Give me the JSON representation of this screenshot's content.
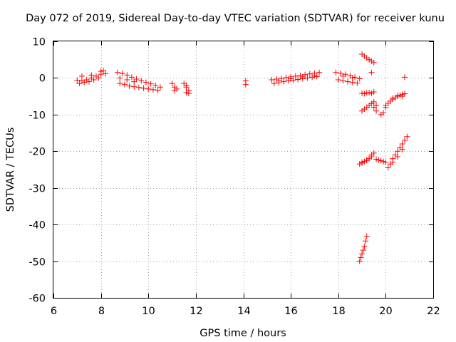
{
  "chart_data": {
    "type": "scatter",
    "title": "Day 072 of 2019, Sidereal Day-to-day VTEC variation (SDTVAR) for receiver kunu",
    "xlabel": "GPS time / hours",
    "ylabel": "SDTVAR / TECUs",
    "xlim": [
      6,
      22
    ],
    "ylim": [
      -60,
      10
    ],
    "xticks": [
      6,
      8,
      10,
      12,
      14,
      16,
      18,
      20,
      22
    ],
    "yticks": [
      10,
      0,
      -10,
      -20,
      -30,
      -40,
      -50,
      -60
    ],
    "xtick_labels": [
      "6",
      "8",
      "10",
      "12",
      "14",
      "16",
      "18",
      "20",
      "22"
    ],
    "ytick_labels": [
      "10",
      "0",
      "-10",
      "-20",
      "-30",
      "-40",
      "-50",
      "-60"
    ],
    "grid": true,
    "marker": "+",
    "color": "#ff0000",
    "series": [
      {
        "name": "seg1",
        "x": [
          7.0,
          7.2,
          7.4,
          7.6,
          7.8,
          8.0,
          8.2,
          7.1,
          7.3,
          7.5,
          7.7,
          7.9,
          8.1,
          7.2,
          7.6,
          8.0
        ],
        "y": [
          -0.6,
          -0.8,
          -0.5,
          0.0,
          0.5,
          1.0,
          1.2,
          -1.5,
          -1.2,
          -1.0,
          -0.5,
          0.0,
          2.0,
          0.5,
          0.8,
          1.8
        ]
      },
      {
        "name": "seg2",
        "x": [
          8.7,
          8.9,
          9.1,
          9.3,
          9.5,
          9.7,
          9.9,
          10.1,
          10.3,
          10.5,
          8.8,
          9.0,
          9.2,
          9.4,
          9.6,
          9.8,
          10.0,
          10.2,
          10.4,
          8.8,
          9.1,
          9.4
        ],
        "y": [
          1.5,
          1.2,
          0.8,
          0.2,
          -0.3,
          -0.8,
          -1.2,
          -1.6,
          -2.0,
          -2.5,
          -1.5,
          -1.8,
          -2.2,
          -2.4,
          -2.6,
          -2.8,
          -3.0,
          -3.2,
          -3.4,
          0.0,
          -0.5,
          -1.0
        ]
      },
      {
        "name": "seg3",
        "x": [
          11.0,
          11.1,
          11.2,
          11.5,
          11.6,
          11.7,
          11.6,
          11.7,
          11.1,
          11.6
        ],
        "y": [
          -1.5,
          -2.5,
          -3.0,
          -1.5,
          -2.5,
          -3.5,
          -4.0,
          -4.2,
          -3.5,
          -2.0
        ]
      },
      {
        "name": "seg4",
        "x": [
          14.1,
          14.1
        ],
        "y": [
          -0.8,
          -1.8
        ]
      },
      {
        "name": "seg5",
        "x": [
          15.2,
          15.4,
          15.6,
          15.8,
          16.0,
          16.2,
          16.4,
          16.6,
          16.8,
          17.0,
          17.2,
          15.3,
          15.5,
          15.7,
          15.9,
          16.1,
          16.3,
          16.5,
          16.7,
          16.9,
          17.1,
          15.5,
          16.0,
          16.5,
          17.0
        ],
        "y": [
          -0.5,
          -0.3,
          -0.1,
          0.1,
          0.3,
          0.5,
          0.7,
          0.9,
          1.1,
          1.3,
          1.5,
          -1.5,
          -1.3,
          -1.0,
          -0.8,
          -0.6,
          -0.4,
          -0.2,
          0.0,
          0.2,
          0.4,
          -0.8,
          -0.2,
          0.3,
          0.6
        ]
      },
      {
        "name": "seg6",
        "x": [
          17.9,
          18.1,
          18.3,
          18.5,
          18.7,
          18.9,
          18.0,
          18.2,
          18.4,
          18.6,
          18.8,
          18.2,
          18.6
        ],
        "y": [
          1.5,
          1.3,
          1.0,
          0.6,
          0.2,
          -0.2,
          -0.5,
          -0.8,
          -1.0,
          -1.2,
          -1.4,
          0.5,
          0.0
        ]
      },
      {
        "name": "seg7",
        "x": [
          19.0,
          19.1,
          19.2,
          19.3,
          19.4,
          19.5,
          19.4
        ],
        "y": [
          6.5,
          6.0,
          5.5,
          5.0,
          4.6,
          4.2,
          1.5
        ]
      },
      {
        "name": "seg8",
        "x": [
          19.0,
          19.1,
          19.2,
          19.3,
          19.4,
          19.5,
          19.0,
          19.1,
          19.2,
          19.3,
          19.4,
          19.5,
          19.6,
          19.5,
          19.6,
          19.8,
          19.9,
          20.0
        ],
        "y": [
          -4.2,
          -4.3,
          -4.1,
          -4.0,
          -4.2,
          -3.8,
          -9.0,
          -8.5,
          -8.0,
          -7.5,
          -7.0,
          -6.5,
          -9.0,
          -8.0,
          -7.5,
          -10.0,
          -9.5,
          -8.0
        ]
      },
      {
        "name": "seg9",
        "x": [
          20.8
        ],
        "y": [
          0.2
        ]
      },
      {
        "name": "seg10",
        "x": [
          20.0,
          20.1,
          20.2,
          20.3,
          20.4,
          20.5,
          20.6,
          20.7,
          20.8,
          20.3,
          20.5,
          20.7
        ],
        "y": [
          -7.5,
          -6.9,
          -6.3,
          -5.8,
          -5.4,
          -5.0,
          -4.7,
          -4.5,
          -4.3,
          -5.5,
          -4.8,
          -5.0
        ]
      },
      {
        "name": "seg11",
        "x": [
          18.9,
          19.0,
          19.1,
          19.2,
          19.3,
          19.4,
          19.5,
          19.0,
          19.2,
          19.4
        ],
        "y": [
          -23.5,
          -23.2,
          -22.8,
          -22.4,
          -22.0,
          -21.5,
          -20.5,
          -23.0,
          -22.5,
          -21.0
        ]
      },
      {
        "name": "seg12",
        "x": [
          19.6,
          19.7,
          19.8,
          19.9,
          20.0,
          20.1,
          20.2,
          20.3,
          20.4,
          20.5,
          20.6,
          20.7,
          20.8,
          20.9,
          20.3,
          20.5,
          20.7
        ],
        "y": [
          -22.2,
          -22.4,
          -22.6,
          -22.8,
          -23.0,
          -24.5,
          -23.5,
          -22.0,
          -21.0,
          -20.0,
          -19.0,
          -18.0,
          -17.0,
          -16.0,
          -23.0,
          -21.5,
          -19.5
        ]
      },
      {
        "name": "seg13",
        "x": [
          18.9,
          18.95,
          19.0,
          19.05,
          19.1,
          19.15,
          19.2
        ],
        "y": [
          -50.0,
          -49.0,
          -48.0,
          -47.0,
          -46.0,
          -44.5,
          -43.2
        ]
      }
    ]
  }
}
